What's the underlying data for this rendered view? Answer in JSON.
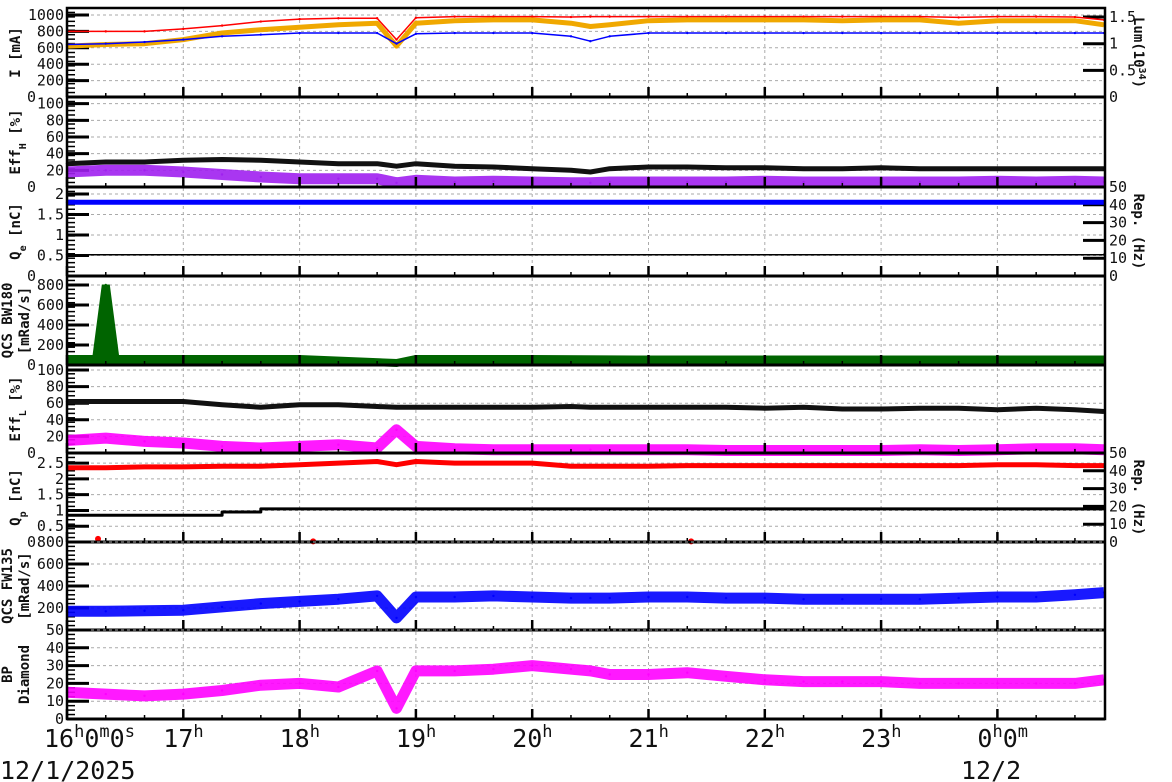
{
  "chart_data": [
    {
      "type": "line",
      "ylabel": {
        "lines": [
          {
            "main": "I [mA]"
          }
        ]
      },
      "ylim": [
        0,
        1085
      ],
      "yticks": [
        0,
        200,
        400,
        600,
        800,
        1000
      ],
      "right_axis": {
        "label": {
          "main": "Lum(10",
          "sup": "34",
          "rest": ")"
        },
        "ylim": [
          0,
          1.67
        ],
        "yticks": [
          0,
          0.5,
          1,
          1.5
        ]
      },
      "x": [
        "16:00",
        "16:20",
        "16:40",
        "17:00",
        "17:20",
        "17:40",
        "18:00",
        "18:20",
        "18:40",
        "18:50",
        "19:00",
        "19:20",
        "19:40",
        "20:00",
        "20:20",
        "20:30",
        "20:40",
        "21:00",
        "21:20",
        "21:40",
        "22:00",
        "22:20",
        "22:40",
        "23:00",
        "23:20",
        "23:40",
        "00:00",
        "00:20",
        "00:40",
        "00:55"
      ],
      "series": [
        {
          "color": "#ff0000",
          "style": "line",
          "values": [
            800,
            800,
            800,
            830,
            870,
            920,
            950,
            960,
            960,
            700,
            965,
            980,
            980,
            980,
            975,
            980,
            980,
            980,
            980,
            980,
            980,
            980,
            980,
            980,
            980,
            970,
            980,
            980,
            975,
            940
          ]
        },
        {
          "color": "#f0a800",
          "style": "band",
          "values": [
            620,
            640,
            650,
            700,
            780,
            820,
            850,
            880,
            900,
            620,
            900,
            930,
            940,
            940,
            900,
            860,
            880,
            930,
            940,
            940,
            940,
            940,
            930,
            940,
            940,
            900,
            930,
            930,
            930,
            880
          ]
        },
        {
          "color": "#0000ff",
          "style": "line",
          "values": [
            640,
            650,
            670,
            700,
            740,
            760,
            780,
            780,
            780,
            650,
            770,
            780,
            780,
            780,
            740,
            680,
            740,
            780,
            780,
            780,
            780,
            780,
            780,
            780,
            780,
            780,
            780,
            780,
            780,
            780
          ]
        }
      ]
    },
    {
      "type": "scatter",
      "ylabel": {
        "lines": [
          {
            "main": "Eff",
            "sub": "H",
            "rest": " [%]"
          }
        ]
      },
      "ylim": [
        0,
        108
      ],
      "yticks": [
        0,
        20,
        40,
        60,
        80,
        100
      ],
      "x": [
        "16:00",
        "16:20",
        "16:40",
        "17:00",
        "17:20",
        "17:40",
        "18:00",
        "18:20",
        "18:40",
        "18:50",
        "19:00",
        "19:20",
        "19:40",
        "20:00",
        "20:20",
        "20:30",
        "20:40",
        "21:00",
        "21:20",
        "21:40",
        "22:00",
        "22:20",
        "22:40",
        "23:00",
        "23:20",
        "23:40",
        "00:00",
        "00:20",
        "00:40",
        "00:55"
      ],
      "series": [
        {
          "color": "#111111",
          "style": "band",
          "values": [
            28,
            30,
            30,
            32,
            33,
            32,
            30,
            28,
            28,
            25,
            28,
            25,
            24,
            22,
            20,
            18,
            22,
            24,
            24,
            23,
            23,
            22,
            22,
            23,
            22,
            22,
            22,
            22,
            22,
            22
          ]
        },
        {
          "color": "#a020f0",
          "style": "wideband",
          "values": [
            18,
            20,
            20,
            18,
            15,
            12,
            10,
            10,
            10,
            5,
            8,
            6,
            7,
            6,
            5,
            5,
            6,
            6,
            6,
            6,
            7,
            6,
            6,
            6,
            6,
            6,
            7,
            6,
            7,
            6
          ]
        }
      ]
    },
    {
      "type": "scatter",
      "ylabel": {
        "lines": [
          {
            "main": "Q",
            "sub": "e",
            "rest": " [nC]"
          }
        ]
      },
      "ylim": [
        0,
        2.17
      ],
      "yticks": [
        0,
        0.5,
        1,
        1.5,
        2
      ],
      "right_axis": {
        "label": {
          "main": "Rep. (Hz)"
        },
        "ylim": [
          0,
          50
        ],
        "yticks": [
          0,
          10,
          20,
          30,
          40,
          50
        ]
      },
      "x": [
        "16:00",
        "00:55"
      ],
      "series": [
        {
          "color": "#0000ff",
          "style": "band",
          "values": [
            1.8,
            1.8
          ]
        },
        {
          "color": "#000000",
          "style": "line",
          "values": [
            0.52,
            0.52
          ]
        }
      ]
    },
    {
      "type": "area",
      "ylabel": {
        "lines": [
          {
            "main": "QCS BW180"
          },
          {
            "main": "[mRad/s]"
          }
        ]
      },
      "ylim": [
        0,
        890
      ],
      "yticks": [
        0,
        200,
        400,
        600,
        800
      ],
      "x": [
        "16:00",
        "16:15",
        "16:20",
        "16:25",
        "17:00",
        "18:00",
        "18:50",
        "19:00",
        "20:00",
        "21:00",
        "22:00",
        "23:00",
        "00:00",
        "00:55"
      ],
      "series": [
        {
          "color": "#006400",
          "style": "area",
          "values": [
            60,
            60,
            800,
            60,
            60,
            60,
            20,
            60,
            60,
            55,
            55,
            55,
            55,
            55
          ]
        }
      ]
    },
    {
      "type": "scatter",
      "ylabel": {
        "lines": [
          {
            "main": "Eff",
            "sub": "L",
            "rest": " [%]"
          }
        ]
      },
      "ylim": [
        0,
        106
      ],
      "yticks": [
        0,
        20,
        40,
        60,
        80,
        100
      ],
      "x": [
        "16:00",
        "16:20",
        "16:40",
        "17:00",
        "17:20",
        "17:40",
        "18:00",
        "18:20",
        "18:40",
        "18:50",
        "19:00",
        "19:20",
        "19:40",
        "20:00",
        "20:20",
        "20:30",
        "20:40",
        "21:00",
        "21:20",
        "21:40",
        "22:00",
        "22:20",
        "22:40",
        "23:00",
        "23:20",
        "23:40",
        "00:00",
        "00:20",
        "00:40",
        "00:55"
      ],
      "series": [
        {
          "color": "#111111",
          "style": "band",
          "values": [
            62,
            62,
            62,
            62,
            58,
            55,
            58,
            58,
            56,
            55,
            55,
            55,
            55,
            55,
            56,
            55,
            55,
            55,
            55,
            55,
            54,
            55,
            53,
            53,
            54,
            54,
            52,
            54,
            52,
            50
          ]
        },
        {
          "color": "#ff00ff",
          "style": "wideband",
          "values": [
            15,
            18,
            14,
            12,
            8,
            6,
            8,
            10,
            6,
            28,
            8,
            5,
            4,
            4,
            4,
            4,
            4,
            4,
            4,
            3,
            3,
            3,
            3,
            3,
            4,
            3,
            4,
            5,
            5,
            4
          ]
        }
      ]
    },
    {
      "type": "scatter",
      "ylabel": {
        "lines": [
          {
            "main": "Q",
            "sub": "p",
            "rest": " [nC]"
          }
        ]
      },
      "ylim": [
        0,
        2.82
      ],
      "yticks": [
        0,
        0.5,
        1,
        1.5,
        2,
        2.5
      ],
      "right_axis": {
        "label": {
          "main": "Rep. (Hz)"
        },
        "ylim": [
          0,
          50
        ],
        "yticks": [
          0,
          10,
          20,
          30,
          40,
          50
        ]
      },
      "x": [
        "16:00",
        "16:20",
        "16:40",
        "17:00",
        "17:20",
        "17:40",
        "18:00",
        "18:20",
        "18:40",
        "18:50",
        "19:00",
        "19:20",
        "19:40",
        "20:00",
        "20:20",
        "20:30",
        "20:40",
        "21:00",
        "21:20",
        "21:40",
        "22:00",
        "22:20",
        "22:40",
        "23:00",
        "23:20",
        "23:40",
        "00:00",
        "00:20",
        "00:40",
        "00:55"
      ],
      "series": [
        {
          "color": "#ff0000",
          "style": "band",
          "values": [
            2.35,
            2.35,
            2.38,
            2.38,
            2.4,
            2.4,
            2.45,
            2.5,
            2.55,
            2.45,
            2.55,
            2.5,
            2.5,
            2.5,
            2.4,
            2.4,
            2.4,
            2.4,
            2.42,
            2.42,
            2.42,
            2.42,
            2.42,
            2.42,
            2.42,
            2.42,
            2.45,
            2.45,
            2.42,
            2.42
          ]
        },
        {
          "color": "#000000",
          "style": "step",
          "values": [
            0.85,
            0.85,
            0.85,
            0.85,
            0.95,
            1.05,
            1.05,
            1.05,
            1.05,
            1.05,
            1.05,
            1.05,
            1.05,
            1.05,
            1.05,
            1.05,
            1.05,
            1.05,
            1.05,
            1.05,
            1.05,
            1.05,
            1.05,
            1.05,
            1.05,
            1.05,
            1.05,
            1.05,
            1.05,
            1.05
          ]
        }
      ],
      "markers": {
        "color": "#ff0000",
        "x": [
          "16:16",
          "18:07",
          "21:22"
        ],
        "values": [
          0.1,
          0.02,
          0.02
        ]
      }
    },
    {
      "type": "line",
      "ylabel": {
        "lines": [
          {
            "main": "QCS FW135"
          },
          {
            "main": "[mRad/s]"
          }
        ]
      },
      "ylim": [
        0,
        800
      ],
      "yticks": [
        200,
        400,
        600,
        800
      ],
      "x": [
        "16:00",
        "16:20",
        "16:40",
        "17:00",
        "17:20",
        "17:40",
        "18:00",
        "18:20",
        "18:40",
        "18:50",
        "19:00",
        "19:20",
        "19:40",
        "20:00",
        "20:20",
        "20:30",
        "20:40",
        "21:00",
        "21:20",
        "21:40",
        "22:00",
        "22:20",
        "22:40",
        "23:00",
        "23:20",
        "23:40",
        "00:00",
        "00:20",
        "00:40",
        "00:55"
      ],
      "series": [
        {
          "color": "#0000ff",
          "style": "wideband",
          "values": [
            170,
            170,
            175,
            180,
            210,
            240,
            260,
            280,
            310,
            110,
            300,
            300,
            310,
            300,
            290,
            290,
            290,
            300,
            300,
            290,
            290,
            280,
            280,
            280,
            280,
            290,
            300,
            300,
            320,
            340
          ]
        }
      ]
    },
    {
      "type": "line",
      "ylabel": {
        "lines": [
          {
            "main": "BP"
          },
          {
            "main": "Diamond"
          }
        ]
      },
      "ylim": [
        0,
        50
      ],
      "yticks": [
        0,
        10,
        20,
        30,
        40,
        50
      ],
      "x": [
        "16:00",
        "16:20",
        "16:40",
        "17:00",
        "17:20",
        "17:40",
        "18:00",
        "18:20",
        "18:40",
        "18:50",
        "19:00",
        "19:20",
        "19:40",
        "20:00",
        "20:20",
        "20:30",
        "20:40",
        "21:00",
        "21:20",
        "21:40",
        "22:00",
        "22:20",
        "22:40",
        "23:00",
        "23:20",
        "23:40",
        "00:00",
        "00:20",
        "00:40",
        "00:55"
      ],
      "series": [
        {
          "color": "#ff00ff",
          "style": "wideband",
          "values": [
            15,
            14,
            13,
            14,
            16,
            19,
            20,
            18,
            27,
            6,
            27,
            27,
            28,
            30,
            28,
            27,
            25,
            25,
            26,
            24,
            22,
            21,
            21,
            21,
            20,
            20,
            20,
            20,
            20,
            22
          ]
        }
      ]
    }
  ],
  "x_axis": {
    "ticks": [
      {
        "time": "16:00",
        "label": "16h0m0s"
      },
      {
        "time": "17:00",
        "label": "17h"
      },
      {
        "time": "18:00",
        "label": "18h"
      },
      {
        "time": "19:00",
        "label": "19h"
      },
      {
        "time": "20:00",
        "label": "20h"
      },
      {
        "time": "21:00",
        "label": "21h"
      },
      {
        "time": "22:00",
        "label": "22h"
      },
      {
        "time": "23:00",
        "label": "23h"
      },
      {
        "time": "00:00",
        "label": "0h0m"
      }
    ],
    "dates": [
      {
        "time": "16:00",
        "label": "12/1/2025"
      },
      {
        "time": "00:00",
        "label": "12/2"
      }
    ]
  }
}
